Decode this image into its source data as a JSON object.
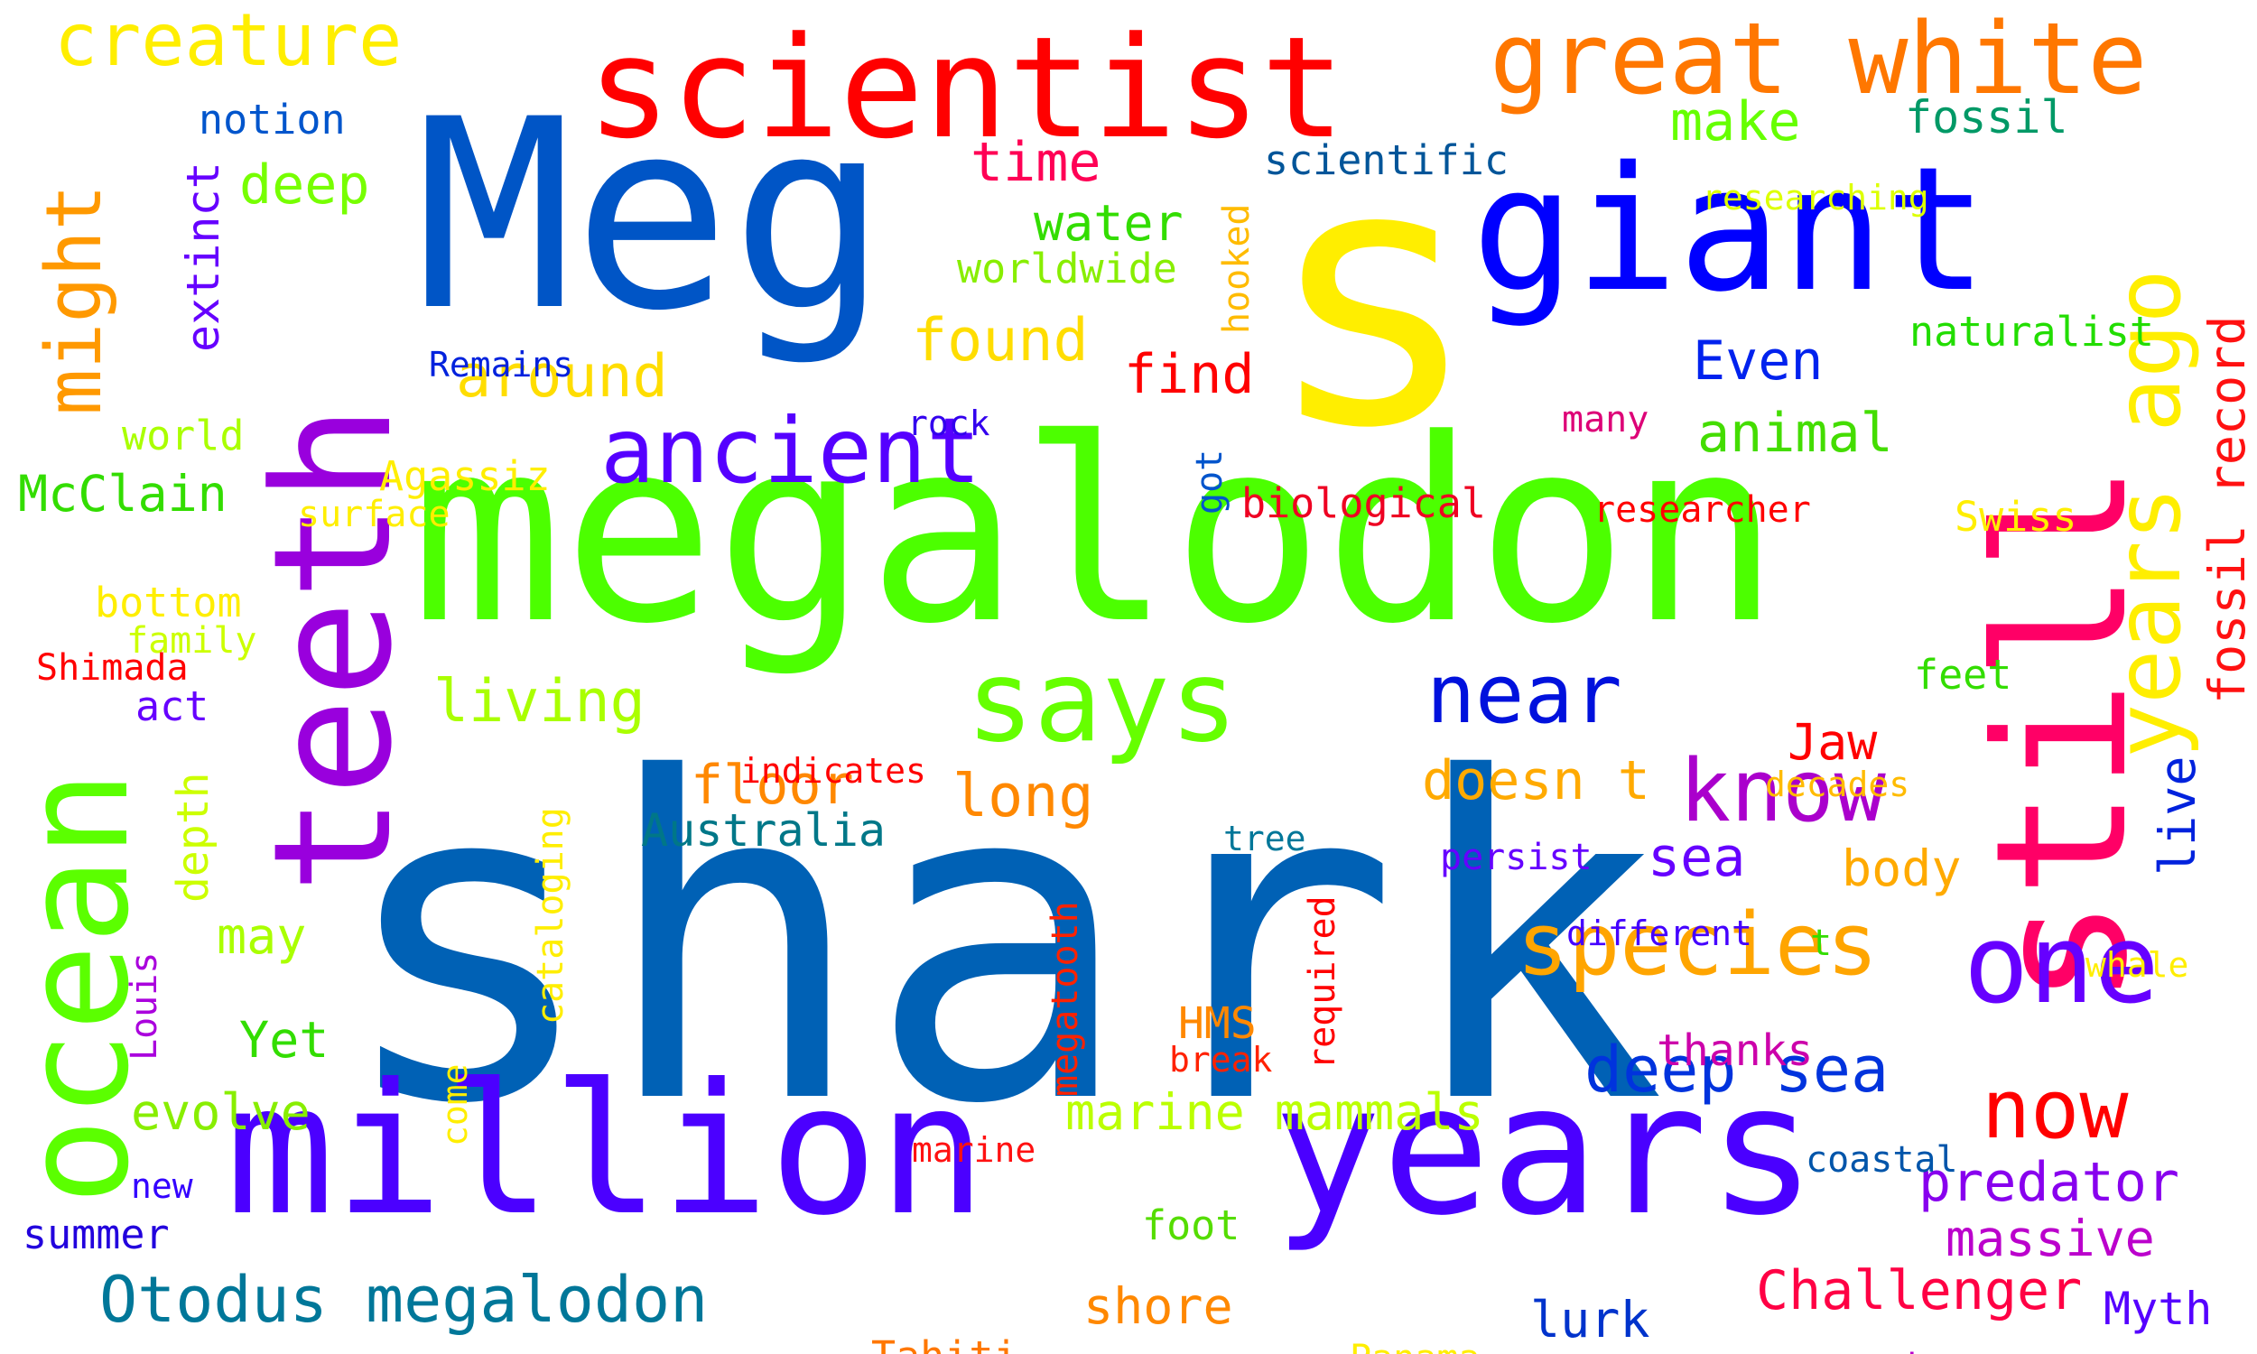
{
  "words": [
    {
      "text": "shark",
      "color": "#0061B5"
    },
    {
      "text": "megalodon",
      "color": "#4CFF00"
    },
    {
      "text": "s",
      "color": "#FFEE00"
    },
    {
      "text": "Meg",
      "color": "#0055C6"
    },
    {
      "text": "still",
      "color": "#FF0066"
    },
    {
      "text": "million",
      "color": "#4B00FF"
    },
    {
      "text": "years",
      "color": "#4A00FF"
    },
    {
      "text": "giant",
      "color": "#0000FF"
    },
    {
      "text": "teeth",
      "color": "#9900DD"
    },
    {
      "text": "ocean",
      "color": "#5BFF00"
    },
    {
      "text": "scientist",
      "color": "#FF0000"
    },
    {
      "text": "great white",
      "color": "#FF7700"
    },
    {
      "text": "years ago",
      "color": "#FFEE00"
    },
    {
      "text": "says",
      "color": "#66FF00"
    },
    {
      "text": "one",
      "color": "#6600FF"
    },
    {
      "text": "species",
      "color": "#FFA500"
    },
    {
      "text": "ancient",
      "color": "#5500FF"
    },
    {
      "text": "might",
      "color": "#FF9900"
    },
    {
      "text": "creature",
      "color": "#FFEE00"
    },
    {
      "text": "know",
      "color": "#AA00CC"
    },
    {
      "text": "near",
      "color": "#0011DD"
    },
    {
      "text": "now",
      "color": "#FF0000"
    },
    {
      "text": "Otodus megalodon",
      "color": "#007799"
    },
    {
      "text": "deep sea",
      "color": "#0033DD"
    },
    {
      "text": "predator",
      "color": "#8800EE"
    },
    {
      "text": "fossil record",
      "color": "#FF1111"
    },
    {
      "text": "found",
      "color": "#FFDD00"
    },
    {
      "text": "around",
      "color": "#FFDD00"
    },
    {
      "text": "animal",
      "color": "#44DD00"
    },
    {
      "text": "Even",
      "color": "#0022EE"
    },
    {
      "text": "living",
      "color": "#AAFF00"
    },
    {
      "text": "long",
      "color": "#FF8800"
    },
    {
      "text": "doesn t",
      "color": "#FFAA00"
    },
    {
      "text": "floor",
      "color": "#FF8800"
    },
    {
      "text": "deep",
      "color": "#77FF00"
    },
    {
      "text": "extinct",
      "color": "#6600FF"
    },
    {
      "text": "McClain",
      "color": "#33DD00"
    },
    {
      "text": "make",
      "color": "#66FF00"
    },
    {
      "text": "time",
      "color": "#FF0055"
    },
    {
      "text": "fossil",
      "color": "#009966"
    },
    {
      "text": "water",
      "color": "#33DD00"
    },
    {
      "text": "worldwide",
      "color": "#88EE00"
    },
    {
      "text": "naturalist",
      "color": "#22DD00"
    },
    {
      "text": "find",
      "color": "#FF0000"
    },
    {
      "text": "sea",
      "color": "#6600FF"
    },
    {
      "text": "body",
      "color": "#FFAA00"
    },
    {
      "text": "massive",
      "color": "#BB00CC"
    },
    {
      "text": "Challenger",
      "color": "#FF0044"
    },
    {
      "text": "shore",
      "color": "#FF8800"
    },
    {
      "text": "lurk",
      "color": "#0033CC"
    },
    {
      "text": "Myth",
      "color": "#5500FF"
    },
    {
      "text": "marine mammals",
      "color": "#BBFF00"
    },
    {
      "text": "evolve",
      "color": "#88EE00"
    },
    {
      "text": "Yet",
      "color": "#33DD00"
    },
    {
      "text": "may",
      "color": "#AAFF00"
    },
    {
      "text": "Australia",
      "color": "#007788"
    },
    {
      "text": "Jaw",
      "color": "#FF0000"
    },
    {
      "text": "notion",
      "color": "#0055CC"
    },
    {
      "text": "scientific",
      "color": "#005599"
    },
    {
      "text": "researching",
      "color": "#DDFF00"
    },
    {
      "text": "Remains",
      "color": "#0022DD"
    },
    {
      "text": "rock",
      "color": "#3300EE"
    },
    {
      "text": "world",
      "color": "#AAFF00"
    },
    {
      "text": "many",
      "color": "#DD0077"
    },
    {
      "text": "Agassiz",
      "color": "#FFEE00"
    },
    {
      "text": "biological",
      "color": "#EE0022"
    },
    {
      "text": "researcher",
      "color": "#FF0000"
    },
    {
      "text": "Swiss",
      "color": "#FFEE00"
    },
    {
      "text": "surface",
      "color": "#FFEE00"
    },
    {
      "text": "bottom",
      "color": "#FFEE00"
    },
    {
      "text": "family",
      "color": "#CCFF00"
    },
    {
      "text": "Shimada",
      "color": "#FF0000"
    },
    {
      "text": "act",
      "color": "#6600FF"
    },
    {
      "text": "feet",
      "color": "#33DD00"
    },
    {
      "text": "indicates",
      "color": "#FF0000"
    },
    {
      "text": "decades",
      "color": "#FFBB00"
    },
    {
      "text": "tree",
      "color": "#007799"
    },
    {
      "text": "persist",
      "color": "#6600FF"
    },
    {
      "text": "different",
      "color": "#4400FF"
    },
    {
      "text": "t",
      "color": "#33DD00"
    },
    {
      "text": "whale",
      "color": "#FFEE00"
    },
    {
      "text": "thanks",
      "color": "#CC00AA"
    },
    {
      "text": "HMS",
      "color": "#FF8800"
    },
    {
      "text": "break",
      "color": "#FF2200"
    },
    {
      "text": "marine",
      "color": "#FF1111"
    },
    {
      "text": "coastal",
      "color": "#0055AA"
    },
    {
      "text": "foot",
      "color": "#55DD00"
    },
    {
      "text": "new",
      "color": "#3300FF"
    },
    {
      "text": "summer",
      "color": "#2200DD"
    },
    {
      "text": "Tahiti",
      "color": "#FF7700"
    },
    {
      "text": "Panama",
      "color": "#FFEE00"
    },
    {
      "text": "oversize",
      "color": "#BB00CC"
    },
    {
      "text": "hooked",
      "color": "#FFBB00"
    },
    {
      "text": "got",
      "color": "#0055CC"
    },
    {
      "text": "live",
      "color": "#0022DD"
    },
    {
      "text": "depth",
      "color": "#CCFF00"
    },
    {
      "text": "cataloging",
      "color": "#FFEE00"
    },
    {
      "text": "Louis",
      "color": "#AA00DD"
    },
    {
      "text": "megatooth",
      "color": "#FF2200"
    },
    {
      "text": "required",
      "color": "#FF0000"
    },
    {
      "text": "come",
      "color": "#FFEE00"
    }
  ]
}
